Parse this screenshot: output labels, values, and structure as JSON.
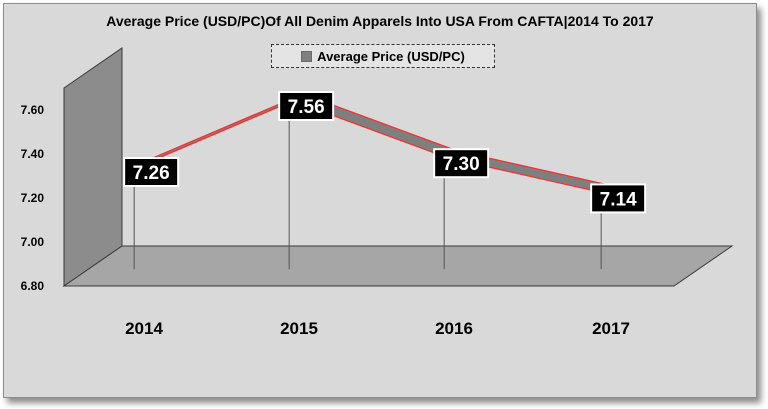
{
  "chart_data": {
    "type": "area",
    "title": "Average Price (USD/PC)Of All Denim Apparels Into USA From CAFTA|2014 To 2017",
    "categories": [
      "2014",
      "2015",
      "2016",
      "2017"
    ],
    "series": [
      {
        "name": "Average Price (USD/PC)",
        "values": [
          7.26,
          7.56,
          7.3,
          7.14
        ]
      }
    ],
    "data_labels": [
      "7.26",
      "7.56",
      "7.30",
      "7.14"
    ],
    "y_ticks": [
      "6.80",
      "7.00",
      "7.20",
      "7.40",
      "7.60"
    ],
    "ylim": [
      6.8,
      7.6
    ],
    "legend_position": "top",
    "style": "3d",
    "colors": {
      "series_fill": "#7f7f7f",
      "series_edge": "#ff2a2a",
      "label_bg": "#000000",
      "label_text": "#ffffff",
      "floor": "#a6a6a6",
      "wall": "#8c8c8c"
    }
  }
}
